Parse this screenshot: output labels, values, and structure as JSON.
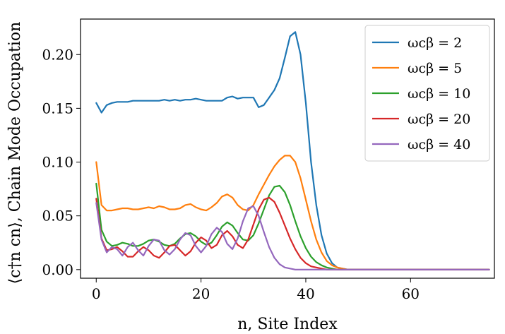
{
  "chart_data": {
    "type": "line",
    "title": "",
    "xlabel": "n, Site Index",
    "ylabel": "⟨c†n cn⟩, Chain Mode Occupation",
    "xlim": [
      -3,
      76
    ],
    "ylim": [
      -0.008,
      0.233
    ],
    "xticks": [
      0,
      20,
      40,
      60
    ],
    "yticks": [
      0.0,
      0.05,
      0.1,
      0.15,
      0.2
    ],
    "ytick_labels": [
      "0.00",
      "0.05",
      "0.10",
      "0.15",
      "0.20"
    ],
    "grid": false,
    "legend_position": "top-right",
    "series": [
      {
        "name": "ωcβ = 2",
        "color": "#1f77b4",
        "x": [
          0,
          1,
          2,
          3,
          4,
          5,
          6,
          7,
          8,
          9,
          10,
          11,
          12,
          13,
          14,
          15,
          16,
          17,
          18,
          19,
          20,
          21,
          22,
          23,
          24,
          25,
          26,
          27,
          28,
          29,
          30,
          31,
          32,
          33,
          34,
          35,
          36,
          37,
          38,
          39,
          40,
          41,
          42,
          43,
          44,
          45,
          46,
          47,
          48,
          49,
          50,
          52,
          55,
          60,
          65,
          70,
          75
        ],
        "y": [
          0.155,
          0.146,
          0.153,
          0.155,
          0.156,
          0.156,
          0.156,
          0.157,
          0.157,
          0.157,
          0.157,
          0.157,
          0.157,
          0.158,
          0.157,
          0.158,
          0.157,
          0.158,
          0.158,
          0.159,
          0.158,
          0.157,
          0.157,
          0.157,
          0.157,
          0.16,
          0.161,
          0.159,
          0.16,
          0.16,
          0.16,
          0.151,
          0.153,
          0.16,
          0.167,
          0.178,
          0.197,
          0.217,
          0.221,
          0.2,
          0.155,
          0.1,
          0.06,
          0.032,
          0.015,
          0.006,
          0.002,
          0.001,
          0.0,
          0.0,
          0.0,
          0.0,
          0.0,
          0.0,
          0.0,
          0.0,
          0.0
        ]
      },
      {
        "name": "ωcβ = 5",
        "color": "#ff7f0e",
        "x": [
          0,
          1,
          2,
          3,
          4,
          5,
          6,
          7,
          8,
          9,
          10,
          11,
          12,
          13,
          14,
          15,
          16,
          17,
          18,
          19,
          20,
          21,
          22,
          23,
          24,
          25,
          26,
          27,
          28,
          29,
          30,
          31,
          32,
          33,
          34,
          35,
          36,
          37,
          38,
          39,
          40,
          41,
          42,
          43,
          44,
          45,
          46,
          47,
          48,
          49,
          50,
          52,
          55,
          60,
          65,
          70,
          75
        ],
        "y": [
          0.1,
          0.06,
          0.055,
          0.055,
          0.056,
          0.057,
          0.057,
          0.056,
          0.056,
          0.057,
          0.058,
          0.057,
          0.059,
          0.058,
          0.056,
          0.056,
          0.057,
          0.06,
          0.061,
          0.058,
          0.056,
          0.055,
          0.058,
          0.062,
          0.068,
          0.07,
          0.067,
          0.06,
          0.056,
          0.055,
          0.06,
          0.07,
          0.079,
          0.088,
          0.096,
          0.102,
          0.106,
          0.106,
          0.1,
          0.085,
          0.065,
          0.045,
          0.028,
          0.016,
          0.008,
          0.004,
          0.002,
          0.001,
          0.0,
          0.0,
          0.0,
          0.0,
          0.0,
          0.0,
          0.0,
          0.0,
          0.0
        ]
      },
      {
        "name": "ωcβ = 10",
        "color": "#2ca02c",
        "x": [
          0,
          1,
          2,
          3,
          4,
          5,
          6,
          7,
          8,
          9,
          10,
          11,
          12,
          13,
          14,
          15,
          16,
          17,
          18,
          19,
          20,
          21,
          22,
          23,
          24,
          25,
          26,
          27,
          28,
          29,
          30,
          31,
          32,
          33,
          34,
          35,
          36,
          37,
          38,
          39,
          40,
          41,
          42,
          43,
          44,
          45,
          46,
          47,
          48,
          49,
          50,
          52,
          55,
          60,
          65,
          70,
          75
        ],
        "y": [
          0.08,
          0.037,
          0.026,
          0.022,
          0.023,
          0.025,
          0.024,
          0.022,
          0.022,
          0.024,
          0.027,
          0.028,
          0.026,
          0.023,
          0.022,
          0.024,
          0.029,
          0.033,
          0.034,
          0.031,
          0.026,
          0.023,
          0.025,
          0.032,
          0.04,
          0.044,
          0.041,
          0.034,
          0.028,
          0.027,
          0.032,
          0.043,
          0.056,
          0.069,
          0.077,
          0.078,
          0.072,
          0.06,
          0.045,
          0.031,
          0.02,
          0.012,
          0.007,
          0.004,
          0.002,
          0.001,
          0.0,
          0.0,
          0.0,
          0.0,
          0.0,
          0.0,
          0.0,
          0.0,
          0.0,
          0.0,
          0.0
        ]
      },
      {
        "name": "ωcβ = 20",
        "color": "#d62728",
        "x": [
          0,
          1,
          2,
          3,
          4,
          5,
          6,
          7,
          8,
          9,
          10,
          11,
          12,
          13,
          14,
          15,
          16,
          17,
          18,
          19,
          20,
          21,
          22,
          23,
          24,
          25,
          26,
          27,
          28,
          29,
          30,
          31,
          32,
          33,
          34,
          35,
          36,
          37,
          38,
          39,
          40,
          41,
          42,
          43,
          44,
          45,
          46,
          47,
          48,
          50,
          52,
          55,
          60,
          65,
          70,
          75
        ],
        "y": [
          0.066,
          0.029,
          0.018,
          0.019,
          0.021,
          0.017,
          0.012,
          0.012,
          0.017,
          0.021,
          0.018,
          0.013,
          0.011,
          0.016,
          0.022,
          0.023,
          0.018,
          0.013,
          0.017,
          0.025,
          0.03,
          0.027,
          0.02,
          0.023,
          0.032,
          0.036,
          0.031,
          0.023,
          0.02,
          0.028,
          0.042,
          0.056,
          0.065,
          0.067,
          0.063,
          0.053,
          0.041,
          0.029,
          0.019,
          0.011,
          0.006,
          0.003,
          0.002,
          0.001,
          0.0,
          0.0,
          0.0,
          0.0,
          0.0,
          0.0,
          0.0,
          0.0,
          0.0,
          0.0,
          0.0,
          0.0
        ]
      },
      {
        "name": "ωcβ = 40",
        "color": "#9467bd",
        "x": [
          0,
          1,
          2,
          3,
          4,
          5,
          6,
          7,
          8,
          9,
          10,
          11,
          12,
          13,
          14,
          15,
          16,
          17,
          18,
          19,
          20,
          21,
          22,
          23,
          24,
          25,
          26,
          27,
          28,
          29,
          30,
          31,
          32,
          33,
          34,
          35,
          36,
          37,
          38,
          39,
          40,
          42,
          45,
          50,
          55,
          60,
          65,
          70,
          75
        ],
        "y": [
          0.062,
          0.028,
          0.016,
          0.021,
          0.019,
          0.013,
          0.021,
          0.025,
          0.018,
          0.013,
          0.022,
          0.028,
          0.027,
          0.018,
          0.014,
          0.019,
          0.028,
          0.034,
          0.032,
          0.022,
          0.016,
          0.022,
          0.033,
          0.039,
          0.035,
          0.024,
          0.019,
          0.029,
          0.045,
          0.057,
          0.059,
          0.05,
          0.035,
          0.021,
          0.011,
          0.005,
          0.002,
          0.001,
          0.0,
          0.0,
          0.0,
          0.0,
          0.0,
          0.0,
          0.0,
          0.0,
          0.0,
          0.0,
          0.0
        ]
      }
    ]
  }
}
